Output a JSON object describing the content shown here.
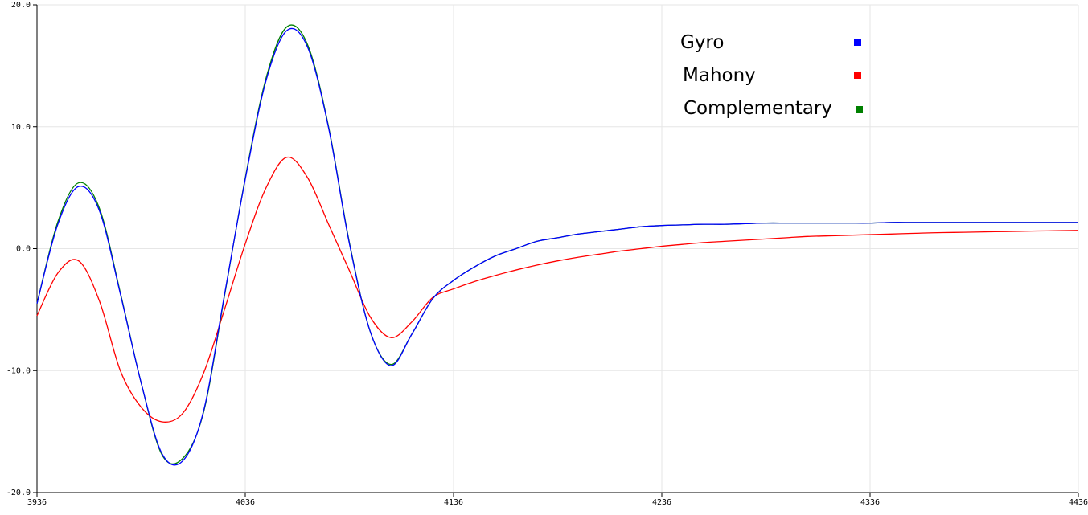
{
  "chart_data": {
    "type": "line",
    "xlim": [
      3936,
      4436
    ],
    "ylim": [
      -20,
      20
    ],
    "grid": true,
    "legend_placement": "top-right",
    "x_ticks": [
      "3936",
      "4036",
      "4136",
      "4236",
      "4336",
      "4436"
    ],
    "y_ticks": [
      "20.0",
      "10.0",
      "0.0",
      "-10.0",
      "-20.0"
    ],
    "x": [
      3936,
      3946,
      3956,
      3966,
      3976,
      3986,
      3996,
      4006,
      4016,
      4026,
      4036,
      4046,
      4056,
      4066,
      4076,
      4086,
      4096,
      4106,
      4116,
      4126,
      4136,
      4146,
      4156,
      4166,
      4176,
      4186,
      4196,
      4206,
      4216,
      4226,
      4236,
      4246,
      4256,
      4266,
      4276,
      4286,
      4296,
      4306,
      4316,
      4326,
      4336,
      4346,
      4356,
      4366,
      4376,
      4386,
      4396,
      4406,
      4416,
      4426,
      4436
    ],
    "series": [
      {
        "name": "Gyro",
        "color": "#0000ff",
        "values": [
          -4.5,
          2.0,
          5.1,
          3.1,
          -3.7,
          -11.0,
          -16.8,
          -17.4,
          -13.3,
          -3.8,
          5.7,
          13.8,
          17.9,
          16.5,
          9.9,
          0.4,
          -6.8,
          -9.6,
          -7.0,
          -4.1,
          -2.6,
          -1.5,
          -0.6,
          0.0,
          0.6,
          0.9,
          1.2,
          1.4,
          1.6,
          1.8,
          1.9,
          1.95,
          2.0,
          2.0,
          2.05,
          2.1,
          2.1,
          2.1,
          2.1,
          2.1,
          2.1,
          2.15,
          2.15,
          2.15,
          2.15,
          2.15,
          2.15,
          2.15,
          2.15,
          2.15,
          2.15
        ]
      },
      {
        "name": "Mahony",
        "color": "#ff0000",
        "values": [
          -5.5,
          -2.0,
          -1.0,
          -4.3,
          -10.0,
          -13.0,
          -14.2,
          -13.5,
          -10.2,
          -5.0,
          0.4,
          5.0,
          7.5,
          5.8,
          2.0,
          -1.8,
          -5.6,
          -7.3,
          -6.0,
          -4.0,
          -3.3,
          -2.7,
          -2.2,
          -1.75,
          -1.35,
          -1.0,
          -0.7,
          -0.45,
          -0.2,
          0.0,
          0.2,
          0.35,
          0.5,
          0.6,
          0.7,
          0.8,
          0.9,
          1.0,
          1.05,
          1.1,
          1.15,
          1.2,
          1.25,
          1.3,
          1.33,
          1.36,
          1.39,
          1.42,
          1.45,
          1.47,
          1.5
        ]
      },
      {
        "name": "Complementary",
        "color": "#008000",
        "values": [
          -4.5,
          2.2,
          5.4,
          3.3,
          -3.6,
          -11.0,
          -16.9,
          -17.2,
          -13.4,
          -3.9,
          5.8,
          14.0,
          18.2,
          16.7,
          10.0,
          0.5,
          -6.8,
          -9.5,
          -7.0,
          -4.1,
          -2.6,
          -1.5,
          -0.6,
          0.0,
          0.6,
          0.9,
          1.2,
          1.4,
          1.6,
          1.8,
          1.9,
          1.95,
          2.0,
          2.0,
          2.05,
          2.1,
          2.1,
          2.1,
          2.1,
          2.1,
          2.1,
          2.15,
          2.15,
          2.15,
          2.15,
          2.15,
          2.15,
          2.15,
          2.15,
          2.15,
          2.15
        ]
      }
    ]
  }
}
